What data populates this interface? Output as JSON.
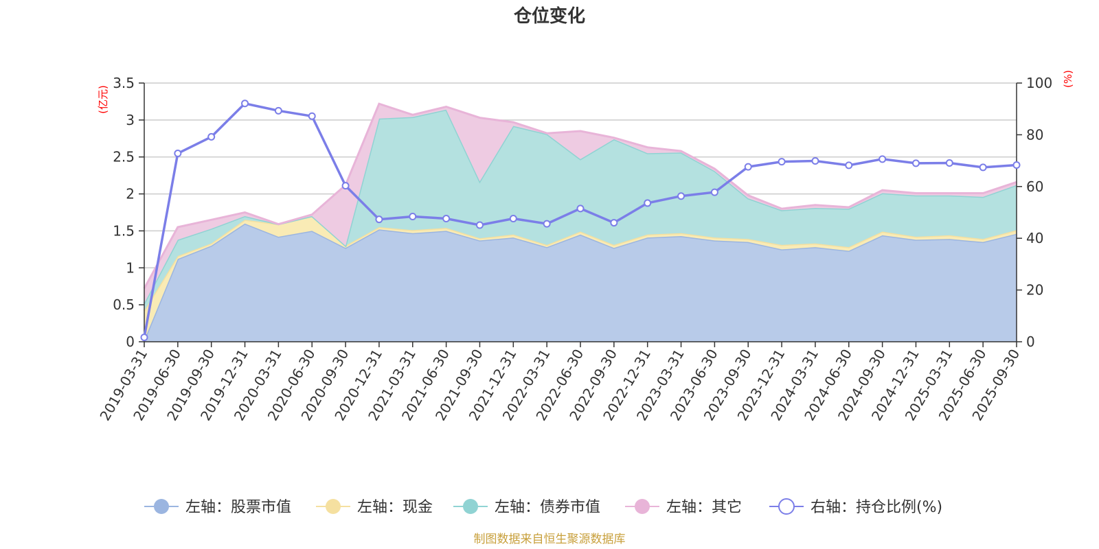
{
  "chart_data": {
    "type": "area",
    "title": "仓位变化",
    "left_axis_unit": "(亿元)",
    "right_axis_unit": "(%)",
    "left_ylim": [
      0,
      3.5
    ],
    "left_ticks": [
      "0",
      "0.5",
      "1",
      "1.5",
      "2",
      "2.5",
      "3",
      "3.5"
    ],
    "left_tick_values": [
      0,
      0.5,
      1,
      1.5,
      2,
      2.5,
      3,
      3.5
    ],
    "right_ylim": [
      0,
      100
    ],
    "right_ticks": [
      "0",
      "20",
      "40",
      "60",
      "80",
      "100"
    ],
    "right_tick_values": [
      0,
      20,
      40,
      60,
      80,
      100
    ],
    "categories": [
      "2019-03-31",
      "2019-06-30",
      "2019-09-30",
      "2019-12-31",
      "2020-03-31",
      "2020-06-30",
      "2020-09-30",
      "2020-12-31",
      "2021-03-31",
      "2021-06-30",
      "2021-09-30",
      "2021-12-31",
      "2022-03-31",
      "2022-06-30",
      "2022-09-30",
      "2022-12-31",
      "2023-03-31",
      "2023-06-30",
      "2023-09-30",
      "2023-12-31",
      "2024-03-31",
      "2024-06-30",
      "2024-09-30",
      "2024-12-31",
      "2025-03-31",
      "2025-06-30",
      "2025-09-30"
    ],
    "stacked_series": [
      {
        "name": "左轴：股票市值",
        "color": "#9bb5e0",
        "fill": "#b8cbe9",
        "values": [
          0.02,
          1.12,
          1.3,
          1.6,
          1.42,
          1.5,
          1.27,
          1.52,
          1.47,
          1.5,
          1.37,
          1.41,
          1.28,
          1.45,
          1.27,
          1.41,
          1.43,
          1.37,
          1.35,
          1.25,
          1.28,
          1.23,
          1.44,
          1.38,
          1.39,
          1.35,
          1.46
        ]
      },
      {
        "name": "左轴：现金",
        "color": "#f5e0a0",
        "fill": "#f9ebb5",
        "values": [
          0.4,
          0.04,
          0.03,
          0.05,
          0.17,
          0.2,
          0.03,
          0.03,
          0.04,
          0.04,
          0.03,
          0.04,
          0.03,
          0.04,
          0.04,
          0.04,
          0.04,
          0.04,
          0.04,
          0.06,
          0.05,
          0.05,
          0.05,
          0.04,
          0.05,
          0.04,
          0.05
        ]
      },
      {
        "name": "左轴：债券市值",
        "color": "#90d3d3",
        "fill": "#b4e1e0",
        "values": [
          0.1,
          0.22,
          0.2,
          0.05,
          0.0,
          0.0,
          0.0,
          1.47,
          1.53,
          1.6,
          0.77,
          1.47,
          1.5,
          0.98,
          1.43,
          1.1,
          1.09,
          0.9,
          0.55,
          0.47,
          0.48,
          0.52,
          0.52,
          0.56,
          0.54,
          0.57,
          0.61
        ]
      },
      {
        "name": "左轴：其它",
        "color": "#e8b4d8",
        "fill": "#eecbe2",
        "values": [
          0.2,
          0.17,
          0.12,
          0.05,
          0.0,
          0.02,
          0.82,
          0.2,
          0.03,
          0.04,
          0.86,
          0.05,
          0.01,
          0.38,
          0.02,
          0.08,
          0.02,
          0.03,
          0.04,
          0.02,
          0.04,
          0.02,
          0.04,
          0.03,
          0.03,
          0.05,
          0.04
        ]
      }
    ],
    "line_series": {
      "name": "右轴：持仓比例(%)",
      "color": "#7b7ee8",
      "axis": "right",
      "values": [
        1.7,
        72.8,
        79.2,
        92.1,
        89.3,
        87.2,
        60.3,
        47.3,
        48.4,
        47.6,
        45.1,
        47.6,
        45.6,
        51.5,
        46.0,
        53.6,
        56.3,
        57.8,
        67.6,
        69.6,
        69.9,
        68.2,
        70.6,
        69.0,
        69.1,
        67.4,
        68.3
      ]
    },
    "legend_position": "bottom",
    "grid": true
  },
  "legend": {
    "items": [
      {
        "label": "左轴：股票市值",
        "color": "#9bb5e0",
        "kind": "circle-filled"
      },
      {
        "label": "左轴：现金",
        "color": "#f5e0a0",
        "kind": "circle-filled"
      },
      {
        "label": "左轴：债券市值",
        "color": "#90d3d3",
        "kind": "circle-filled"
      },
      {
        "label": "左轴：其它",
        "color": "#e8b4d8",
        "kind": "circle-filled"
      },
      {
        "label": "右轴：持仓比例(%)",
        "color": "#7b7ee8",
        "kind": "circle-hollow"
      }
    ]
  },
  "footer": {
    "source": "制图数据来自恒生聚源数据库"
  },
  "colors": {
    "axis": "#333333",
    "grid": "#cccccc",
    "unit": "#ff0000",
    "source": "#c8a03c"
  }
}
